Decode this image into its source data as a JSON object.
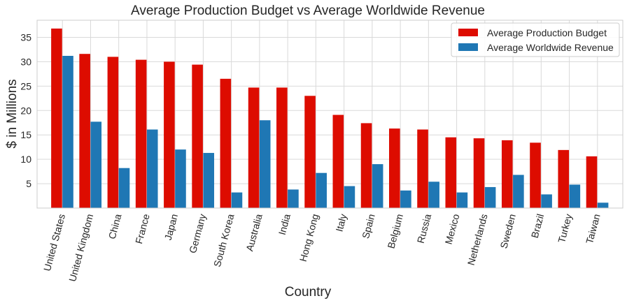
{
  "chart_data": {
    "type": "bar",
    "title": "Average Production Budget vs Average Worldwide Revenue",
    "xlabel": "Country",
    "ylabel": "$ in Millions",
    "ylim": [
      0,
      38.5
    ],
    "yticks": [
      5,
      10,
      15,
      20,
      25,
      30,
      35
    ],
    "grid": true,
    "legend_position": "top-right",
    "categories": [
      "United States",
      "United Kingdom",
      "China",
      "France",
      "Japan",
      "Germany",
      "South Korea",
      "Australia",
      "India",
      "Hong Kong",
      "Italy",
      "Spain",
      "Belgium",
      "Russia",
      "Mexico",
      "Netherlands",
      "Sweden",
      "Brazil",
      "Turkey",
      "Taiwan"
    ],
    "series": [
      {
        "name": "Average Production Budget",
        "color": "#dd0c00",
        "values": [
          36.8,
          31.6,
          31.0,
          30.4,
          30.0,
          29.4,
          26.5,
          24.7,
          24.7,
          23.0,
          19.1,
          17.4,
          16.3,
          16.1,
          14.5,
          14.3,
          13.9,
          13.4,
          11.9,
          10.6
        ]
      },
      {
        "name": "Average Worldwide Revenue",
        "color": "#1f77b4",
        "values": [
          31.2,
          17.7,
          8.2,
          16.1,
          12.0,
          11.3,
          3.2,
          18.0,
          3.8,
          7.2,
          4.5,
          9.0,
          3.6,
          5.4,
          3.2,
          4.3,
          6.8,
          2.8,
          4.8,
          1.1
        ]
      }
    ]
  }
}
